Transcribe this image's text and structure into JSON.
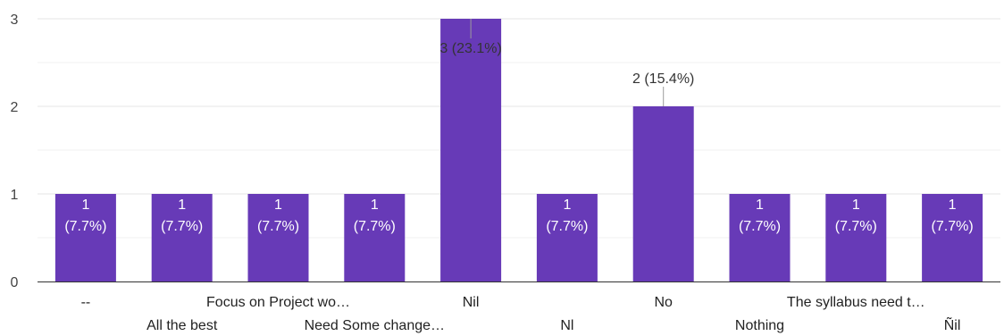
{
  "chart_data": {
    "type": "bar",
    "title": "",
    "xlabel": "",
    "ylabel": "",
    "ylim": [
      0,
      3
    ],
    "yticks": [
      0,
      1,
      2,
      3
    ],
    "grid": true,
    "legend": "none",
    "bar_color": "#673ab7",
    "categories": [
      "--",
      "All the best",
      "Focus on Project wo…",
      "Need Some change…",
      "Nil",
      "Nl",
      "No",
      "Nothing",
      "The syllabus need t…",
      "Ñil"
    ],
    "values": [
      1,
      1,
      1,
      1,
      3,
      1,
      2,
      1,
      1,
      1
    ],
    "value_labels": [
      "1 (7.7%)",
      "1 (7.7%)",
      "1 (7.7%)",
      "1 (7.7%)",
      "3 (23.1%)",
      "1 (7.7%)",
      "2 (15.4%)",
      "1 (7.7%)",
      "1 (7.7%)",
      "1 (7.7%)"
    ]
  }
}
